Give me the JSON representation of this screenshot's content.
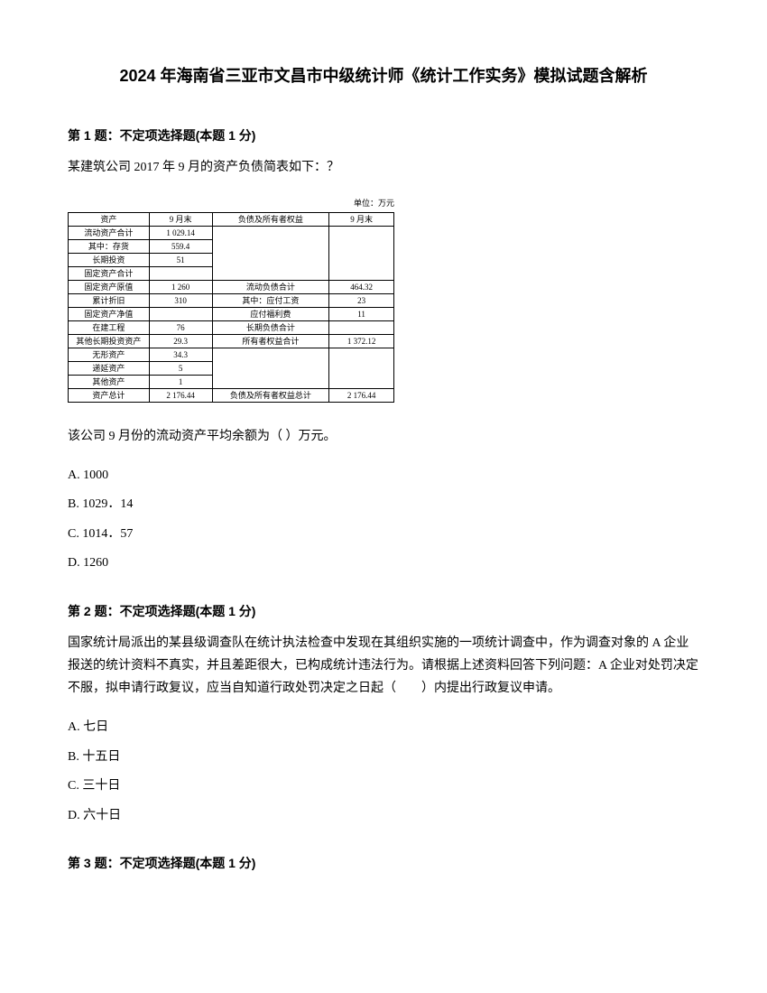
{
  "title": "2024 年海南省三亚市文昌市中级统计师《统计工作实务》模拟试题含解析",
  "q1": {
    "header": "第 1 题：不定项选择题(本题 1 分)",
    "intro": "某建筑公司 2017 年 9 月的资产负债简表如下：？",
    "unit": "单位：万元",
    "headers": {
      "c1": "资产",
      "c2": "9 月末",
      "c3": "负债及所有者权益",
      "c4": "9 月末"
    },
    "rows_left": [
      {
        "name": "流动资产合计",
        "val": "1 029.14"
      },
      {
        "name": "其中：存货",
        "val": "559.4"
      },
      {
        "name": "长期投资",
        "val": "51"
      },
      {
        "name": "固定资产合计",
        "val": ""
      },
      {
        "name": "固定资产原值",
        "val": "1 260"
      },
      {
        "name": "累计折旧",
        "val": "310"
      },
      {
        "name": "固定资产净值",
        "val": ""
      },
      {
        "name": "在建工程",
        "val": "76"
      },
      {
        "name": "其他长期投资资产",
        "val": "29.3"
      },
      {
        "name": "无形资产",
        "val": "34.3"
      },
      {
        "name": "递延资产",
        "val": "5"
      },
      {
        "name": "其他资产",
        "val": "1"
      }
    ],
    "rows_right": [
      {
        "name": "流动负债合计",
        "val": "464.32"
      },
      {
        "name": "其中：应付工资",
        "val": "23"
      },
      {
        "name": "应付福利费",
        "val": "11"
      },
      {
        "name": "长期负债合计",
        "val": ""
      },
      {
        "name": "所有者权益合计",
        "val": "1 372.12"
      }
    ],
    "foot": {
      "l1": "资产总计",
      "l2": "2 176.44",
      "r1": "负债及所有者权益总计",
      "r2": "2 176.44"
    },
    "stem": "该公司 9 月份的流动资产平均余额为（ ）万元。",
    "opts": {
      "a": "A. 1000",
      "b": "B. 1029．14",
      "c": "C. 1014．57",
      "d": "D. 1260"
    }
  },
  "q2": {
    "header": "第 2 题：不定项选择题(本题 1 分)",
    "body": "国家统计局派出的某县级调查队在统计执法检查中发现在其组织实施的一项统计调查中，作为调查对象的 A 企业报送的统计资料不真实，并且差距很大，已构成统计违法行为。请根据上述资料回答下列问题：A 企业对处罚决定不服，拟申请行政复议，应当自知道行政处罚决定之日起（　　）内提出行政复议申请。",
    "opts": {
      "a": "A. 七日",
      "b": "B. 十五日",
      "c": "C. 三十日",
      "d": "D. 六十日"
    }
  },
  "q3": {
    "header": "第 3 题：不定项选择题(本题 1 分)"
  }
}
